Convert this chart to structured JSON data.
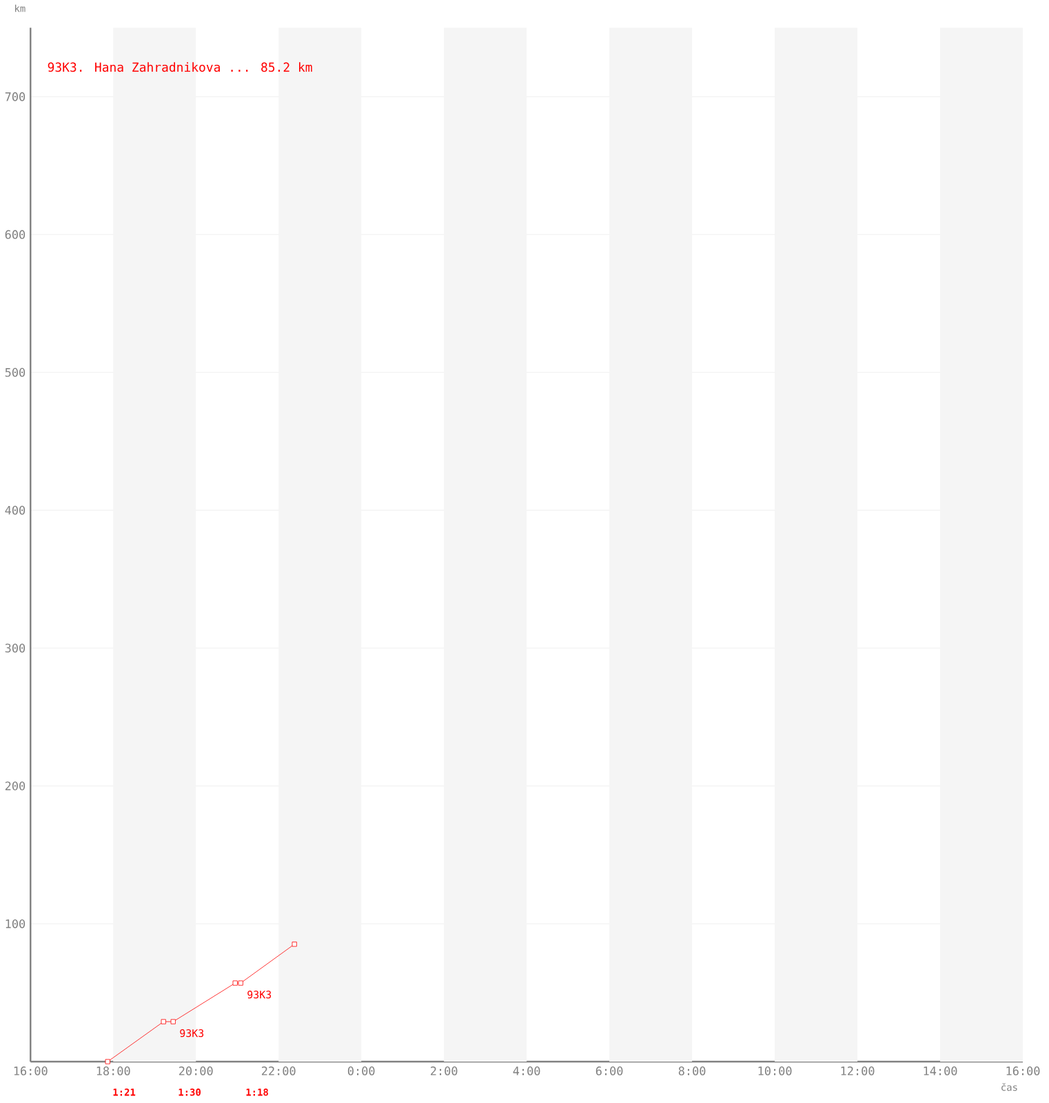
{
  "chart_data": {
    "type": "line",
    "title": "93K3. Hana Zahradnikova ... 85.2 km",
    "xlabel": "čas",
    "ylabel": "km",
    "x": [
      "2000-01-01T17:52",
      "2000-01-01T19:13",
      "2000-01-01T19:27",
      "2000-01-01T20:57",
      "2000-01-01T21:05",
      "2000-01-01T22:23"
    ],
    "values": [
      0,
      29,
      29,
      57,
      57,
      85.2
    ],
    "color": "#ff0000",
    "marker": "square",
    "xlim": [
      "2000-01-01T16:00",
      "2000-01-02T16:00"
    ],
    "ylim": [
      0,
      750
    ],
    "xticks": [
      {
        "value": "2000-01-01T16:00",
        "label": "16:00"
      },
      {
        "value": "2000-01-01T18:00",
        "label": "18:00"
      },
      {
        "value": "2000-01-01T20:00",
        "label": "20:00"
      },
      {
        "value": "2000-01-01T22:00",
        "label": "22:00"
      },
      {
        "value": "2000-01-02T00:00",
        "label": "0:00"
      },
      {
        "value": "2000-01-02T02:00",
        "label": "2:00"
      },
      {
        "value": "2000-01-02T04:00",
        "label": "4:00"
      },
      {
        "value": "2000-01-02T06:00",
        "label": "6:00"
      },
      {
        "value": "2000-01-02T08:00",
        "label": "8:00"
      },
      {
        "value": "2000-01-02T10:00",
        "label": "10:00"
      },
      {
        "value": "2000-01-02T12:00",
        "label": "12:00"
      },
      {
        "value": "2000-01-02T14:00",
        "label": "14:00"
      },
      {
        "value": "2000-01-02T16:00",
        "label": "16:00"
      }
    ],
    "yticks": [
      100,
      200,
      300,
      400,
      500,
      600,
      700
    ],
    "grid": "y",
    "bands": [
      {
        "axis": "x",
        "from": "2000-01-01T18:00",
        "to": "2000-01-01T20:00",
        "color": "#f5f5f5"
      },
      {
        "axis": "x",
        "from": "2000-01-01T22:00",
        "to": "2000-01-02T00:00",
        "color": "#f5f5f5"
      },
      {
        "axis": "x",
        "from": "2000-01-02T02:00",
        "to": "2000-01-02T04:00",
        "color": "#f5f5f5"
      },
      {
        "axis": "x",
        "from": "2000-01-02T06:00",
        "to": "2000-01-02T08:00",
        "color": "#f5f5f5"
      },
      {
        "axis": "x",
        "from": "2000-01-02T10:00",
        "to": "2000-01-02T12:00",
        "color": "#f5f5f5"
      },
      {
        "axis": "x",
        "from": "2000-01-02T14:00",
        "to": "2000-01-02T16:00",
        "color": "#f5f5f5"
      }
    ],
    "annotations": [
      {
        "text": "93K3",
        "x": "2000-01-01T19:27",
        "y": 29
      },
      {
        "text": "93K3",
        "x": "2000-01-01T21:05",
        "y": 57
      },
      "1:21",
      "1:30",
      "1:18"
    ]
  }
}
